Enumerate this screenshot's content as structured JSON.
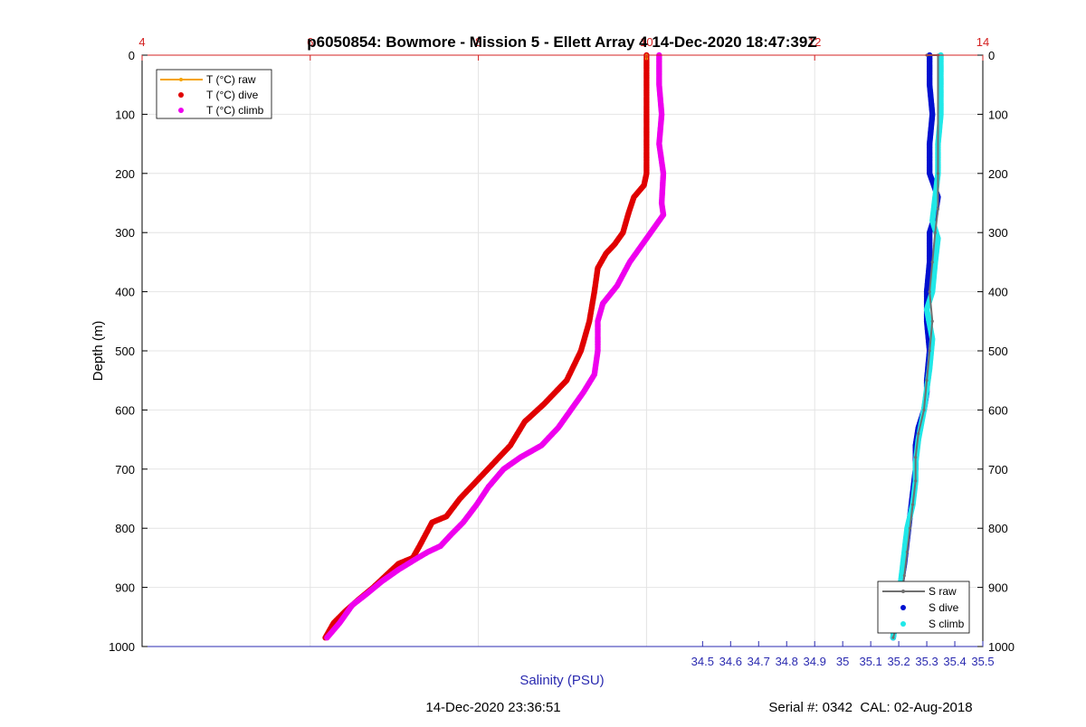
{
  "chart_data": {
    "type": "line",
    "title": "p6050854: Bowmore - Mission 5 - Ellett Array 4 14-Dec-2020 18:47:39Z",
    "ylabel": "Depth (m)",
    "xlabel_bottom": "Salinity (PSU)",
    "ylim": [
      0,
      1000
    ],
    "y_reversed": true,
    "y_ticks": [
      "0",
      "100",
      "200",
      "300",
      "400",
      "500",
      "600",
      "700",
      "800",
      "900",
      "1000"
    ],
    "x_bottom": {
      "lim": [
        32.5,
        35.5
      ],
      "ticks": [
        "34.5",
        "34.6",
        "34.7",
        "34.8",
        "34.9",
        "35",
        "35.1",
        "35.2",
        "35.3",
        "35.4",
        "35.5"
      ],
      "color": "#2a2ab0"
    },
    "x_top": {
      "lim": [
        4,
        14
      ],
      "ticks": [
        "4",
        "6",
        "8",
        "10",
        "12",
        "14"
      ],
      "color": "#d42020"
    },
    "grid": true,
    "footer_left": "14-Dec-2020 23:36:51",
    "footer_right": "Serial #: 0342  CAL: 02-Aug-2018",
    "legend_temperature": {
      "placement": "top-left",
      "entries": [
        {
          "label": "T (°C) raw",
          "color": "#f5a300"
        },
        {
          "label": "T (°C) dive",
          "color": "#e00000"
        },
        {
          "label": "T (°C) climb",
          "color": "#ee00ee"
        }
      ]
    },
    "legend_salinity": {
      "placement": "bottom-right",
      "entries": [
        {
          "label": "S raw",
          "color": "#707070"
        },
        {
          "label": "S dive",
          "color": "#0010d0"
        },
        {
          "label": "S climb",
          "color": "#20e8e8"
        }
      ]
    },
    "series": [
      {
        "key": "t_dive",
        "axis": "top",
        "color": "#e00000",
        "x": [
          10.0,
          10.0,
          10.0,
          10.0,
          10.0,
          9.97,
          9.85,
          9.78,
          9.72,
          9.62,
          9.52,
          9.42,
          9.38,
          9.32,
          9.22,
          9.05,
          8.78,
          8.55,
          8.38,
          8.18,
          7.98,
          7.78,
          7.62,
          7.45,
          7.3,
          7.22,
          7.05,
          6.9,
          6.75,
          6.58,
          6.42,
          6.28,
          6.18
        ],
        "y": [
          0,
          20,
          100,
          150,
          200,
          220,
          240,
          270,
          300,
          320,
          335,
          360,
          400,
          450,
          500,
          550,
          590,
          620,
          660,
          690,
          720,
          750,
          780,
          790,
          830,
          850,
          860,
          880,
          900,
          920,
          940,
          960,
          985
        ]
      },
      {
        "key": "t_climb",
        "axis": "top",
        "color": "#ee00ee",
        "x": [
          10.15,
          10.15,
          10.18,
          10.15,
          10.2,
          10.18,
          10.2,
          10.05,
          9.95,
          9.8,
          9.65,
          9.48,
          9.42,
          9.42,
          9.38,
          9.25,
          9.1,
          8.95,
          8.75,
          8.5,
          8.3,
          8.12,
          7.98,
          7.82,
          7.68,
          7.55,
          7.4,
          7.28,
          7.05,
          6.85,
          6.68,
          6.5,
          6.35,
          6.2
        ],
        "y": [
          0,
          50,
          100,
          150,
          200,
          250,
          270,
          300,
          320,
          350,
          390,
          420,
          450,
          500,
          540,
          570,
          600,
          630,
          660,
          680,
          700,
          730,
          760,
          790,
          810,
          830,
          840,
          850,
          870,
          890,
          910,
          930,
          960,
          985
        ]
      },
      {
        "key": "t_raw",
        "axis": "top",
        "color": "#f5a300",
        "x": [
          10.0,
          10.0
        ],
        "y": [
          0,
          6
        ]
      },
      {
        "key": "s_dive",
        "axis": "bottom",
        "color": "#0010d0",
        "x": [
          35.31,
          35.31,
          35.32,
          35.31,
          35.31,
          35.34,
          35.33,
          35.31,
          35.31,
          35.3,
          35.3,
          35.31,
          35.3,
          35.3,
          35.29,
          35.27,
          35.26,
          35.26,
          35.25,
          35.24,
          35.23,
          35.22,
          35.21,
          35.2,
          35.19,
          35.18
        ],
        "y": [
          0,
          50,
          100,
          150,
          200,
          240,
          270,
          300,
          350,
          400,
          450,
          500,
          550,
          570,
          600,
          630,
          660,
          700,
          740,
          780,
          820,
          860,
          890,
          920,
          950,
          985
        ]
      },
      {
        "key": "s_climb",
        "axis": "bottom",
        "color": "#20e8e8",
        "x": [
          35.35,
          35.35,
          35.35,
          35.34,
          35.34,
          35.33,
          35.32,
          35.34,
          35.33,
          35.32,
          35.3,
          35.32,
          35.31,
          35.29,
          35.27,
          35.26,
          35.26,
          35.25,
          35.23,
          35.22,
          35.21,
          35.2,
          35.19,
          35.18
        ],
        "y": [
          0,
          50,
          100,
          150,
          200,
          240,
          280,
          310,
          350,
          400,
          430,
          480,
          530,
          600,
          650,
          690,
          720,
          760,
          800,
          840,
          880,
          920,
          950,
          985
        ]
      },
      {
        "key": "s_raw",
        "axis": "bottom",
        "color": "#707070",
        "x": [
          35.3,
          35.34,
          35.34,
          35.34,
          35.33,
          35.32,
          35.31,
          35.32,
          35.31,
          35.3,
          35.29,
          35.27,
          35.26,
          35.26,
          35.25,
          35.24,
          35.23,
          35.22,
          35.21,
          35.2,
          35.19,
          35.18
        ],
        "y": [
          0,
          0,
          200,
          260,
          300,
          350,
          400,
          450,
          500,
          550,
          600,
          640,
          680,
          720,
          760,
          800,
          840,
          880,
          910,
          940,
          970,
          985
        ]
      }
    ]
  }
}
